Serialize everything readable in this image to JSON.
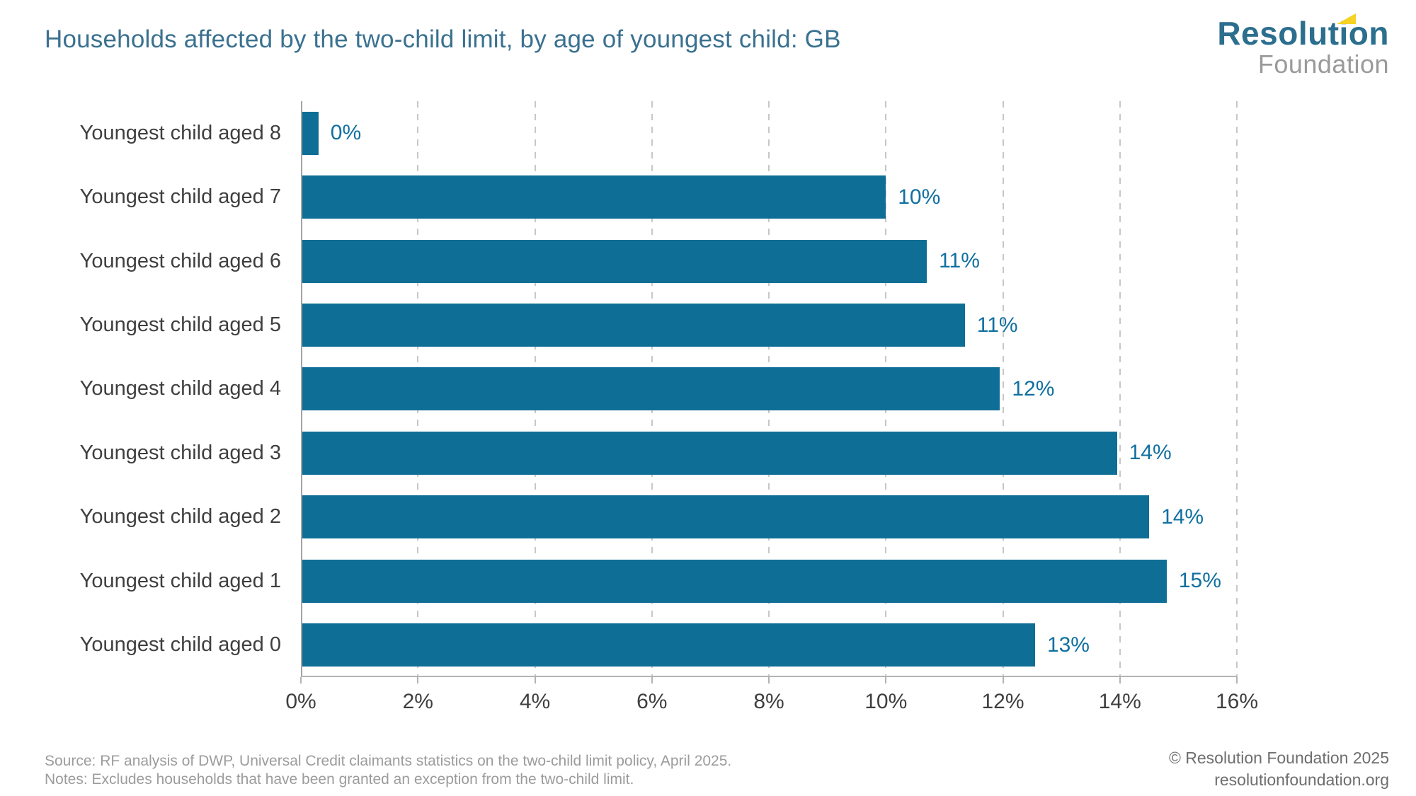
{
  "header": {
    "title": "Households affected by the two-child limit, by age of youngest child: GB",
    "logo": {
      "line1": "Resolution",
      "line2": "Foundation",
      "flag_icon_color": "#F5D223",
      "teal": "#2C6E8E",
      "gray": "#9A9A9A"
    }
  },
  "chart_data": {
    "type": "bar",
    "orientation": "horizontal",
    "title": "Households affected by the two-child limit, by age of youngest child: GB",
    "categories": [
      "Youngest child aged 8",
      "Youngest child aged 7",
      "Youngest child aged 6",
      "Youngest child aged 5",
      "Youngest child aged 4",
      "Youngest child aged 3",
      "Youngest child aged 2",
      "Youngest child aged 1",
      "Youngest child aged 0"
    ],
    "values": [
      0,
      10,
      11,
      11,
      12,
      14,
      14,
      15,
      13
    ],
    "value_labels": [
      "0%",
      "10%",
      "11%",
      "11%",
      "12%",
      "14%",
      "14%",
      "15%",
      "13%"
    ],
    "bar_lengths_pct": [
      0.3,
      10.0,
      10.7,
      11.35,
      11.95,
      13.95,
      14.5,
      14.8,
      12.55
    ],
    "x_ticks": [
      "0%",
      "2%",
      "4%",
      "6%",
      "8%",
      "10%",
      "12%",
      "14%",
      "16%"
    ],
    "xlim": [
      0,
      16
    ],
    "xlabel": "",
    "ylabel": "",
    "grid": "vertical-dashed-every-2pct",
    "legend": "none",
    "bar_color": "#0F6E96",
    "value_label_color": "#1070A0"
  },
  "footer": {
    "source": "Source: RF analysis of DWP, Universal Credit claimants statistics on the two-child limit policy, April 2025.",
    "notes": "Notes: Excludes households that have been granted an exception from the two-child limit.",
    "copyright": "© Resolution Foundation 2025",
    "website": "resolutionfoundation.org"
  }
}
